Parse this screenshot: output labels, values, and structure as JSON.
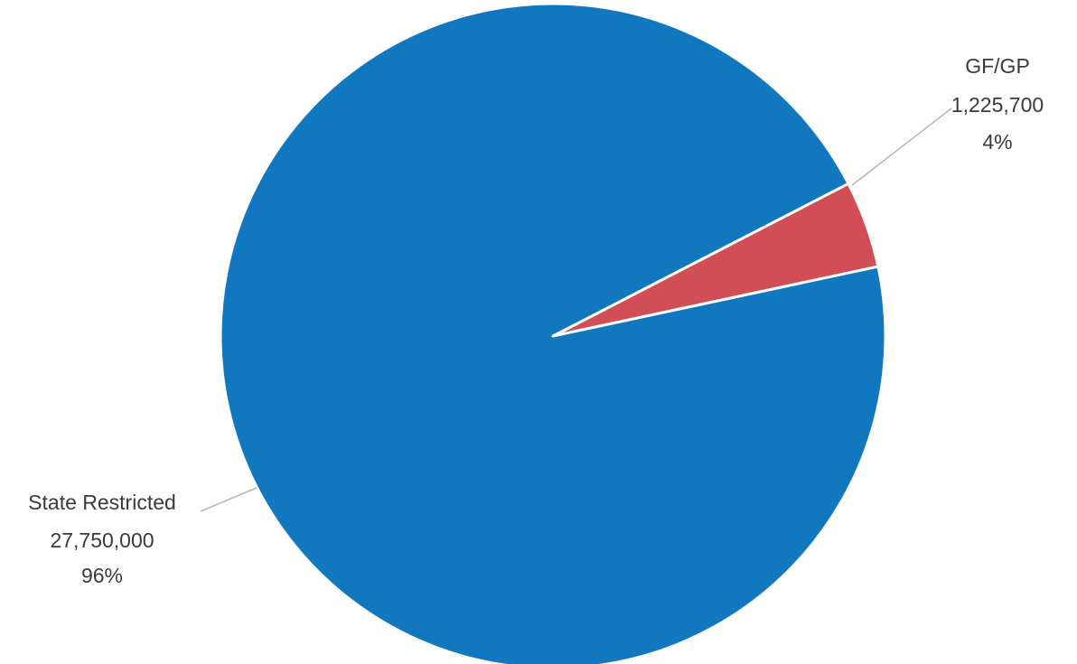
{
  "chart_data": {
    "type": "pie",
    "title": "",
    "series": [
      {
        "name": "",
        "slices": [
          {
            "label": "GF/GP",
            "value": 1225700,
            "value_text": "1,225,700",
            "percent_text": "4%",
            "color": "#d24e56"
          },
          {
            "label": "State Restricted",
            "value": 27750000,
            "value_text": "27,750,000",
            "percent_text": "96%",
            "color": "#1177be"
          }
        ]
      }
    ],
    "legend": "none",
    "data_labels": "outside with leader lines"
  }
}
